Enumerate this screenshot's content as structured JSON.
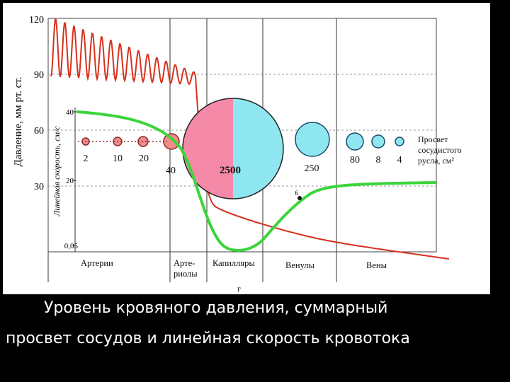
{
  "figure": {
    "pressure_axis": {
      "label": "Давление, мм рт. ст.",
      "ticks": [
        "120",
        "90",
        "60",
        "30"
      ]
    },
    "velocity_axis": {
      "label": "Линейная скорость, см/с",
      "ticks": [
        "40",
        "20",
        "0,05"
      ]
    },
    "lumen_label": [
      "Просвет",
      "сосудистого",
      "русла, см²"
    ],
    "lumen_values": [
      "2",
      "10",
      "20",
      "40",
      "2500",
      "250",
      "80",
      "8",
      "4"
    ],
    "vessel_labels": {
      "arteries": "Артерии",
      "arterioles_line1": "Арте-",
      "arterioles_line2": "риолы",
      "capillaries": "Капилляры",
      "venules": "Венулы",
      "veins": "Вены"
    },
    "figure_letter": "г",
    "velocity_point_label": "6",
    "colors": {
      "pressure_curve": "#d8301e",
      "velocity_curve": "#3bd43b",
      "arterial_circles": "#f08c8c",
      "capillary_left": "#f58aa8",
      "venous_circles": "#8ee6f0"
    }
  },
  "caption": {
    "line1": "Уровень кровяного давления, суммарный",
    "line2": "просвет сосудов и линейная скорость кровотока"
  }
}
